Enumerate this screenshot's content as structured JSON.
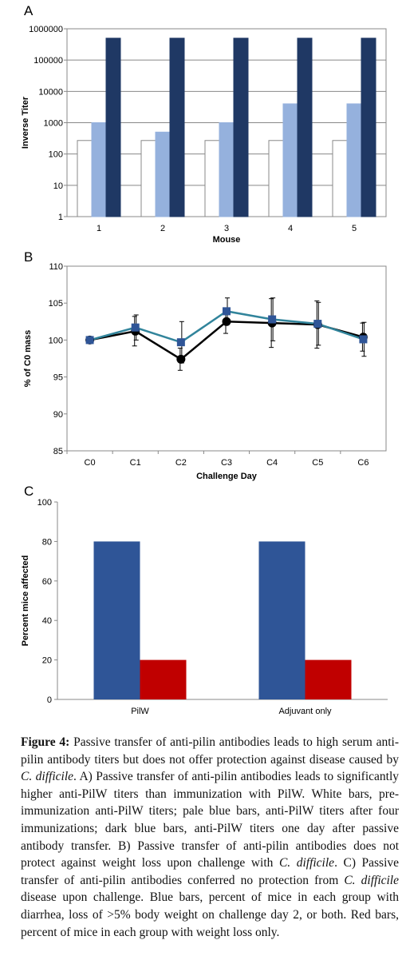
{
  "chart_data": [
    {
      "panel": "A",
      "type": "bar",
      "yscale": "log",
      "categories": [
        "1",
        "2",
        "3",
        "4",
        "5"
      ],
      "series": [
        {
          "values": [
            270,
            270,
            270,
            270,
            270
          ],
          "color": "#ffffff"
        },
        {
          "values": [
            1000,
            500,
            1000,
            4000,
            4000
          ],
          "color": "#95b1dd"
        },
        {
          "values": [
            500000,
            500000,
            500000,
            500000,
            500000
          ],
          "color": "#1f3864"
        }
      ],
      "yticks": [
        "1",
        "10",
        "100",
        "1000",
        "10000",
        "100000",
        "1000000"
      ],
      "xlabel": "Mouse",
      "ylabel": "Inverse Titer",
      "ylim": [
        1,
        1000000
      ]
    },
    {
      "panel": "B",
      "type": "line",
      "categories": [
        "C0",
        "C1",
        "C2",
        "C3",
        "C4",
        "C5",
        "C6"
      ],
      "series": [
        {
          "values": [
            100,
            101.7,
            99.7,
            103.9,
            102.8,
            102.2,
            100.1
          ],
          "errors": [
            0.3,
            1.7,
            2.8,
            1.8,
            2.9,
            2.9,
            2.3
          ],
          "color": "#31849b",
          "marker": "square"
        },
        {
          "values": [
            100,
            101.2,
            97.4,
            102.5,
            102.3,
            102.1,
            100.4
          ],
          "errors": [
            0.3,
            2.0,
            1.5,
            1.6,
            3.3,
            3.2,
            1.9
          ],
          "color": "#000000",
          "marker": "circle"
        }
      ],
      "yticks": [
        "85",
        "90",
        "95",
        "100",
        "105",
        "110"
      ],
      "xlabel": "Challenge Day",
      "ylabel": "% of C0 mass",
      "ylim": [
        85,
        110
      ]
    },
    {
      "panel": "C",
      "type": "bar",
      "categories": [
        "PilW",
        "Adjuvant only"
      ],
      "series": [
        {
          "values": [
            80,
            80
          ],
          "color": "#2f5597"
        },
        {
          "values": [
            20,
            20
          ],
          "color": "#c00000"
        }
      ],
      "yticks": [
        "0",
        "20",
        "40",
        "60",
        "80",
        "100"
      ],
      "ylabel": "Percent mice affected",
      "ylim": [
        0,
        100
      ]
    }
  ],
  "caption": {
    "figure_label": "Figure 4:",
    "title_part1": " Passive transfer of anti-pilin antibodies leads to high serum anti-pilin antibody titers but does not offer protection against disease caused by ",
    "organism": "C. difficile",
    "title_part2": ". A) Passive transfer of anti-pilin antibodies leads to significantly higher anti-PilW titers than immunization with PilW. White bars, pre-immunization anti-PilW titers; pale blue bars, anti-PilW titers after four immunizations; dark blue bars, anti-PilW titers one day after passive antibody transfer. B) Passive transfer of anti-pilin antibodies does not protect against weight loss upon challenge with ",
    "organism2": "C. difficile",
    "title_part3": ". C) Passive transfer of anti-pilin antibodies conferred no protection from ",
    "organism3": "C. difficile",
    "title_part4": " disease upon challenge. Blue bars, percent of mice in each group with diarrhea, loss of >5% body weight on challenge day 2, or both. Red bars, percent of mice in each group with weight loss only."
  },
  "panel_labels": {
    "a": "A",
    "b": "B",
    "c": "C"
  }
}
